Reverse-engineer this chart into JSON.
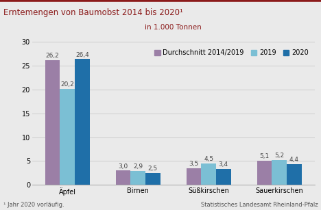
{
  "title": "Erntemengen von Baumobst 2014 bis 2020¹",
  "subtitle": "in 1.000 Tonnen",
  "footnote": "¹ Jahr 2020 vorläufig.",
  "source": "Statistisches Landesamt Rheinland-Pfalz",
  "categories": [
    "Äpfel",
    "Birnen",
    "Süßkirschen",
    "Sauerkirschen"
  ],
  "series": [
    {
      "label": "Durchschnitt 2014/2019",
      "color": "#9B7FA6",
      "values": [
        26.2,
        3.0,
        3.5,
        5.1
      ]
    },
    {
      "label": "2019",
      "color": "#7BBFD4",
      "values": [
        20.2,
        2.9,
        4.5,
        5.2
      ]
    },
    {
      "label": "2020",
      "color": "#1F6FA8",
      "values": [
        26.4,
        2.5,
        3.4,
        4.4
      ]
    }
  ],
  "ylim": [
    0,
    30
  ],
  "yticks": [
    0,
    5,
    10,
    15,
    20,
    25,
    30
  ],
  "bar_width": 0.21,
  "title_color": "#8B1A1A",
  "subtitle_color": "#8B1A1A",
  "background_color": "#EAEAEA",
  "plot_bg_color": "#EAEAEA",
  "top_border_color": "#8B1A1A",
  "grid_color": "#C8C8C8",
  "title_fontsize": 8.5,
  "subtitle_fontsize": 7.5,
  "axis_tick_fontsize": 7,
  "legend_fontsize": 7,
  "bar_label_fontsize": 6.5,
  "footnote_fontsize": 6,
  "source_fontsize": 6
}
